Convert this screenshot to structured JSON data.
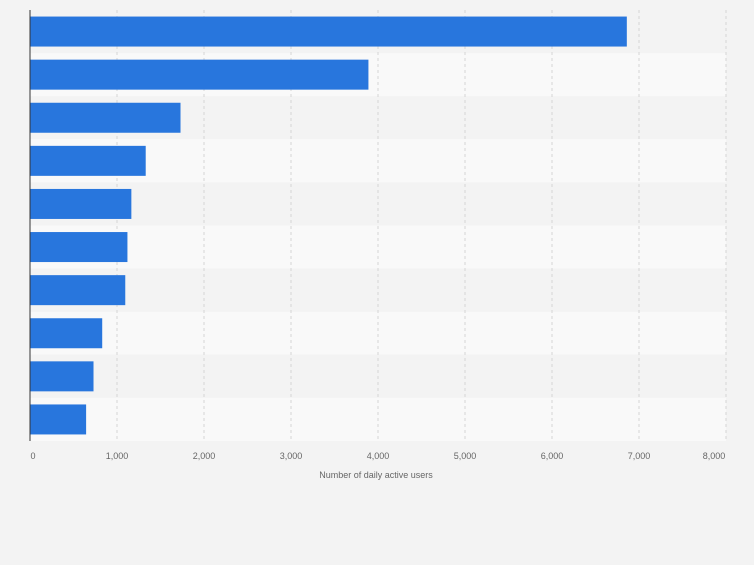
{
  "chart_data": {
    "type": "bar",
    "orientation": "horizontal",
    "categories": [
      "",
      "",
      "",
      "",
      "",
      "",
      "",
      "",
      "",
      ""
    ],
    "values": [
      6860,
      3890,
      1730,
      1330,
      1165,
      1120,
      1095,
      830,
      730,
      645
    ],
    "title": "",
    "xlabel": "Number of daily active users",
    "ylabel": "",
    "xlim": [
      0,
      8000
    ],
    "x_ticks": [
      0,
      1000,
      2000,
      3000,
      4000,
      5000,
      6000,
      7000,
      8000
    ],
    "x_tick_labels": [
      "0",
      "1,000",
      "2,000",
      "3,000",
      "4,000",
      "5,000",
      "6,000",
      "7,000",
      "8,000"
    ],
    "grid": "vertical dashed",
    "bar_color": "#2876dd",
    "background_color": "#f3f3f3",
    "alternate_band_color": "#f9f9f9",
    "grid_color": "#d5d5d5",
    "axis_color": "#333333",
    "tick_label_color": "#666666"
  }
}
